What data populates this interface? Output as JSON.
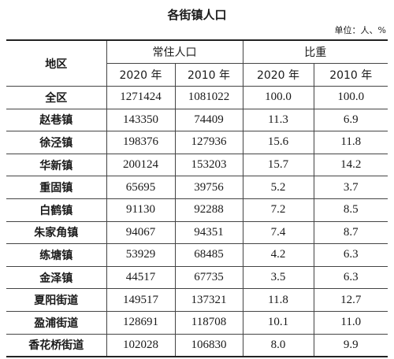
{
  "title": "各街镇人口",
  "unit": "单位：人、%",
  "table": {
    "header": {
      "region": "地区",
      "population": "常住人口",
      "share": "比重",
      "years": [
        "2020 年",
        "2010 年",
        "2020 年",
        "2010 年"
      ]
    },
    "rows": [
      [
        "全区",
        "1271424",
        "1081022",
        "100.0",
        "100.0"
      ],
      [
        "赵巷镇",
        "143350",
        "74409",
        "11.3",
        "6.9"
      ],
      [
        "徐泾镇",
        "198376",
        "127936",
        "15.6",
        "11.8"
      ],
      [
        "华新镇",
        "200124",
        "153203",
        "15.7",
        "14.2"
      ],
      [
        "重固镇",
        "65695",
        "39756",
        "5.2",
        "3.7"
      ],
      [
        "白鹤镇",
        "91130",
        "92288",
        "7.2",
        "8.5"
      ],
      [
        "朱家角镇",
        "94067",
        "94351",
        "7.4",
        "8.7"
      ],
      [
        "练塘镇",
        "53929",
        "68485",
        "4.2",
        "6.3"
      ],
      [
        "金泽镇",
        "44517",
        "67735",
        "3.5",
        "6.3"
      ],
      [
        "夏阳街道",
        "149517",
        "137321",
        "11.8",
        "12.7"
      ],
      [
        "盈浦街道",
        "128691",
        "118708",
        "10.1",
        "11.0"
      ],
      [
        "香花桥街道",
        "102028",
        "106830",
        "8.0",
        "9.9"
      ]
    ]
  }
}
